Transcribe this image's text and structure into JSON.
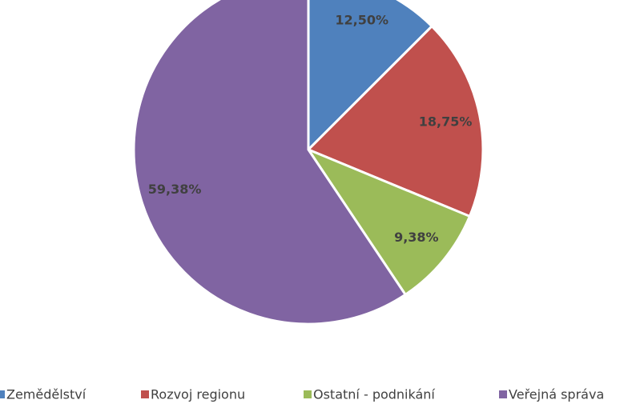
{
  "chart_data": {
    "type": "pie",
    "categories": [
      "Zemědělství",
      "Rozvoj regionu",
      "Ostatní - podnikání",
      "Veřejná správa"
    ],
    "values": [
      12.5,
      18.75,
      9.38,
      59.38
    ],
    "value_labels": [
      "12,50%",
      "18,75%",
      "9,38%",
      "59,38%"
    ],
    "colors": [
      "#4f81bd",
      "#c0504d",
      "#9bbb59",
      "#8064a2"
    ],
    "legend": "bottom"
  }
}
